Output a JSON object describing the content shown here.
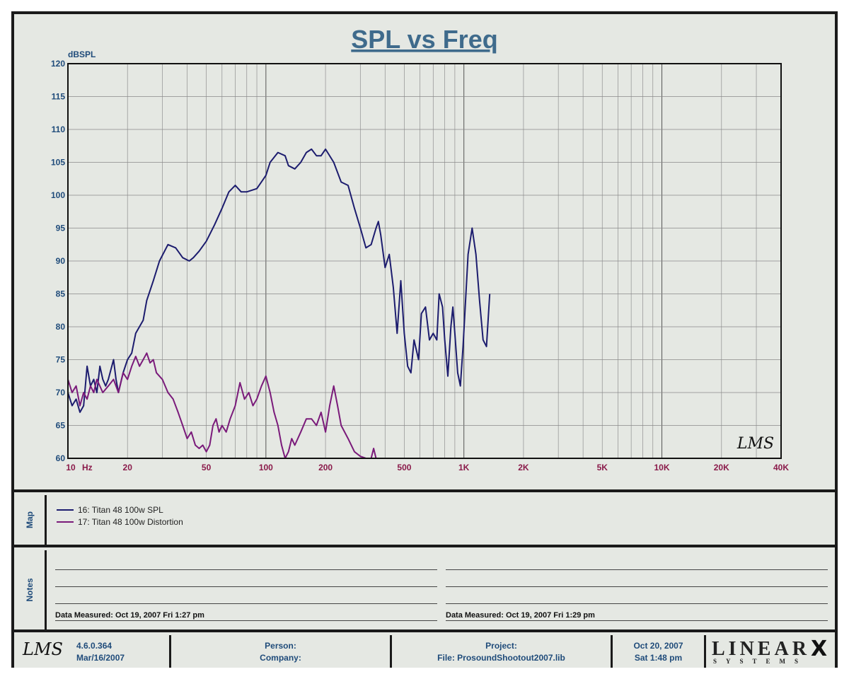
{
  "chart_data": {
    "type": "line",
    "title": "SPL vs Freq",
    "ylabel": "dBSPL",
    "xscale": "log",
    "xlim": [
      10,
      40000
    ],
    "ylim": [
      60,
      120
    ],
    "grid": true,
    "x_tick_labels": [
      {
        "value": 10,
        "label": "10"
      },
      {
        "value": 20,
        "label": "20"
      },
      {
        "value": 50,
        "label": "50"
      },
      {
        "value": 100,
        "label": "100"
      },
      {
        "value": 200,
        "label": "200"
      },
      {
        "value": 500,
        "label": "500"
      },
      {
        "value": 1000,
        "label": "1K"
      },
      {
        "value": 2000,
        "label": "2K"
      },
      {
        "value": 5000,
        "label": "5K"
      },
      {
        "value": 10000,
        "label": "10K"
      },
      {
        "value": 20000,
        "label": "20K"
      },
      {
        "value": 40000,
        "label": "40K"
      }
    ],
    "x_unit_label": "Hz",
    "y_ticks": [
      60,
      65,
      70,
      75,
      80,
      85,
      90,
      95,
      100,
      105,
      110,
      115,
      120
    ],
    "series": [
      {
        "name": "16: Titan 48 100w SPL",
        "color": "#1c1c6e",
        "points": [
          [
            10,
            70
          ],
          [
            10.5,
            68
          ],
          [
            11,
            69
          ],
          [
            11.5,
            67
          ],
          [
            12,
            68
          ],
          [
            12.5,
            74
          ],
          [
            13,
            71
          ],
          [
            13.5,
            72
          ],
          [
            14,
            70
          ],
          [
            14.5,
            74
          ],
          [
            15,
            72
          ],
          [
            15.5,
            71
          ],
          [
            16,
            72
          ],
          [
            17,
            75
          ],
          [
            17.5,
            72
          ],
          [
            18,
            70
          ],
          [
            19,
            73
          ],
          [
            20,
            75
          ],
          [
            21,
            76
          ],
          [
            22,
            79
          ],
          [
            24,
            81
          ],
          [
            25,
            84
          ],
          [
            27,
            87
          ],
          [
            29,
            90
          ],
          [
            32,
            92.5
          ],
          [
            35,
            92
          ],
          [
            38,
            90.5
          ],
          [
            41,
            90
          ],
          [
            43,
            90.5
          ],
          [
            46,
            91.5
          ],
          [
            50,
            93
          ],
          [
            55,
            95.5
          ],
          [
            60,
            98
          ],
          [
            65,
            100.5
          ],
          [
            70,
            101.5
          ],
          [
            75,
            100.5
          ],
          [
            80,
            100.5
          ],
          [
            90,
            101
          ],
          [
            100,
            103
          ],
          [
            105,
            105
          ],
          [
            115,
            106.5
          ],
          [
            125,
            106
          ],
          [
            130,
            104.5
          ],
          [
            140,
            104
          ],
          [
            150,
            105
          ],
          [
            160,
            106.5
          ],
          [
            170,
            107
          ],
          [
            180,
            106
          ],
          [
            190,
            106
          ],
          [
            200,
            107
          ],
          [
            220,
            105
          ],
          [
            240,
            102
          ],
          [
            260,
            101.5
          ],
          [
            280,
            98
          ],
          [
            300,
            95
          ],
          [
            320,
            92
          ],
          [
            340,
            92.5
          ],
          [
            360,
            95
          ],
          [
            370,
            96
          ],
          [
            380,
            94
          ],
          [
            400,
            89
          ],
          [
            420,
            91
          ],
          [
            440,
            86
          ],
          [
            460,
            79
          ],
          [
            480,
            87
          ],
          [
            500,
            79
          ],
          [
            520,
            74
          ],
          [
            540,
            73
          ],
          [
            560,
            78
          ],
          [
            590,
            75
          ],
          [
            610,
            82
          ],
          [
            640,
            83
          ],
          [
            670,
            78
          ],
          [
            700,
            79
          ],
          [
            730,
            78
          ],
          [
            750,
            85
          ],
          [
            780,
            83
          ],
          [
            800,
            78
          ],
          [
            830,
            72.5
          ],
          [
            860,
            80
          ],
          [
            880,
            83
          ],
          [
            900,
            79
          ],
          [
            930,
            73
          ],
          [
            960,
            71
          ],
          [
            990,
            77
          ],
          [
            1050,
            91
          ],
          [
            1100,
            95
          ],
          [
            1150,
            91
          ],
          [
            1200,
            84
          ],
          [
            1250,
            78
          ],
          [
            1300,
            77
          ],
          [
            1350,
            85
          ]
        ]
      },
      {
        "name": "17: Titan 48 100w Distortion",
        "color": "#7a1a7a",
        "points": [
          [
            10,
            72
          ],
          [
            10.5,
            70
          ],
          [
            11,
            71
          ],
          [
            11.5,
            68
          ],
          [
            12,
            70
          ],
          [
            12.5,
            69
          ],
          [
            13,
            71
          ],
          [
            13.5,
            70
          ],
          [
            14,
            72
          ],
          [
            15,
            70
          ],
          [
            16,
            71
          ],
          [
            17,
            72
          ],
          [
            18,
            70
          ],
          [
            19,
            73
          ],
          [
            20,
            72
          ],
          [
            21,
            74
          ],
          [
            22,
            75.5
          ],
          [
            23,
            74
          ],
          [
            24,
            75
          ],
          [
            25,
            76
          ],
          [
            26,
            74.5
          ],
          [
            27,
            75
          ],
          [
            28,
            73
          ],
          [
            30,
            72
          ],
          [
            32,
            70
          ],
          [
            34,
            69
          ],
          [
            36,
            67
          ],
          [
            38,
            65
          ],
          [
            40,
            63
          ],
          [
            42,
            64
          ],
          [
            44,
            62
          ],
          [
            46,
            61.5
          ],
          [
            48,
            62
          ],
          [
            50,
            61
          ],
          [
            52,
            62
          ],
          [
            54,
            65
          ],
          [
            56,
            66
          ],
          [
            58,
            64
          ],
          [
            60,
            65
          ],
          [
            63,
            64
          ],
          [
            66,
            66
          ],
          [
            70,
            68
          ],
          [
            74,
            71.5
          ],
          [
            78,
            69
          ],
          [
            82,
            70
          ],
          [
            86,
            68
          ],
          [
            90,
            69
          ],
          [
            95,
            71
          ],
          [
            100,
            72.5
          ],
          [
            105,
            70
          ],
          [
            110,
            67
          ],
          [
            115,
            65
          ],
          [
            120,
            62
          ],
          [
            125,
            60
          ],
          [
            130,
            61
          ],
          [
            135,
            63
          ],
          [
            140,
            62
          ],
          [
            150,
            64
          ],
          [
            160,
            66
          ],
          [
            170,
            66
          ],
          [
            180,
            65
          ],
          [
            190,
            67
          ],
          [
            200,
            64
          ],
          [
            210,
            68
          ],
          [
            220,
            71
          ],
          [
            230,
            68
          ],
          [
            240,
            65
          ],
          [
            260,
            63
          ],
          [
            280,
            61
          ],
          [
            300,
            60.3
          ],
          [
            320,
            60
          ],
          [
            340,
            60
          ],
          [
            350,
            61.5
          ],
          [
            360,
            60
          ],
          [
            400,
            60
          ],
          [
            500,
            60
          ],
          [
            600,
            60
          ],
          [
            700,
            60
          ],
          [
            800,
            60
          ],
          [
            900,
            60
          ],
          [
            1000,
            60
          ]
        ]
      }
    ]
  },
  "legend_title": "Map",
  "legend": [
    {
      "label": "16: Titan 48 100w SPL",
      "color": "#1c1c6e"
    },
    {
      "label": "17: Titan 48 100w Distortion",
      "color": "#7a1a7a"
    }
  ],
  "notes": {
    "title": "Notes",
    "left_measured": "Data Measured: Oct 19, 2007  Fri  1:27 pm",
    "right_measured": "Data Measured: Oct 19, 2007  Fri  1:29 pm"
  },
  "footer": {
    "version": "4.6.0.364",
    "build_date": "Mar/16/2007",
    "person_label": "Person:",
    "company_label": "Company:",
    "project_label": "Project:",
    "file_label": "File: ProsoundShootout2007.lib",
    "date": "Oct 20, 2007",
    "day_time": "Sat  1:48 pm",
    "brand": "LINEAR",
    "brand_sub": "SYSTEMS",
    "watermark": "LMS"
  }
}
